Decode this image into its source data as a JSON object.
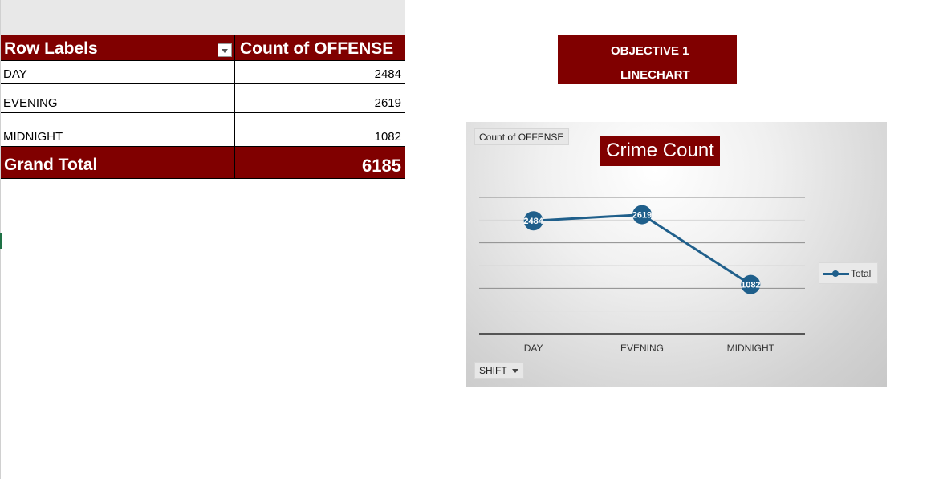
{
  "pivot": {
    "headers": {
      "row_labels": "Row Labels",
      "count": "Count of OFFENSE"
    },
    "rows": [
      {
        "label": "DAY",
        "value": "2484"
      },
      {
        "label": "EVENING",
        "value": "2619"
      },
      {
        "label": "MIDNIGHT",
        "value": "1082"
      }
    ],
    "total": {
      "label": "Grand Total",
      "value": "6185"
    }
  },
  "objective": {
    "line1": "OBJECTIVE 1",
    "line2": "LINECHART"
  },
  "chart": {
    "value_field_button": "Count of OFFENSE",
    "axis_field_button": "SHIFT",
    "legend_label": "Total",
    "accent_color": "#1f5f8b",
    "title_bg": "#800000"
  },
  "chart_data": {
    "type": "line",
    "title": "Crime Count",
    "categories": [
      "DAY",
      "EVENING",
      "MIDNIGHT"
    ],
    "series": [
      {
        "name": "Total",
        "values": [
          2484,
          2619,
          1082
        ]
      }
    ],
    "ylim": [
      0,
      3000
    ],
    "grid": true,
    "legend": "right",
    "data_labels": true
  }
}
